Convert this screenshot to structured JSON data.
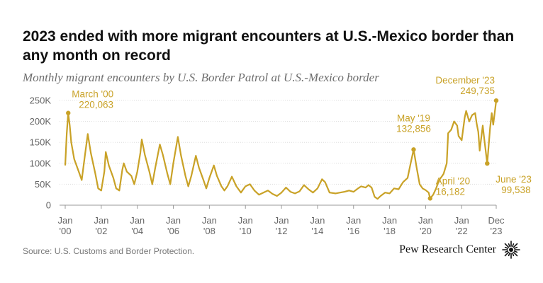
{
  "title": "2023 ended with more migrant encounters at U.S.-Mexico border than any month on record",
  "subtitle": "Monthly migrant encounters by U.S. Border Patrol at U.S.-Mexico border",
  "source": "Source: U.S. Customs and Border Protection.",
  "brand": "Pew Research Center",
  "colors": {
    "line": "#c9a227",
    "axis": "#999999",
    "grid": "#dddddd"
  },
  "chart_data": {
    "type": "line",
    "ylim": [
      0,
      250000
    ],
    "yticks": [
      {
        "value": 0,
        "label": "0"
      },
      {
        "value": 50000,
        "label": "50K"
      },
      {
        "value": 100000,
        "label": "100K"
      },
      {
        "value": 150000,
        "label": "150K"
      },
      {
        "value": 200000,
        "label": "200K"
      },
      {
        "value": 250000,
        "label": "250K"
      }
    ],
    "xlim": [
      2000.0,
      2023.917
    ],
    "xticks": [
      {
        "value": 2000.0,
        "line1": "Jan",
        "line2": "'00"
      },
      {
        "value": 2002.0,
        "line1": "Jan",
        "line2": "'02"
      },
      {
        "value": 2004.0,
        "line1": "Jan",
        "line2": "'04"
      },
      {
        "value": 2006.0,
        "line1": "Jan",
        "line2": "'06"
      },
      {
        "value": 2008.0,
        "line1": "Jan",
        "line2": "'08"
      },
      {
        "value": 2010.0,
        "line1": "Jan",
        "line2": "'10"
      },
      {
        "value": 2012.0,
        "line1": "Jan",
        "line2": "'12"
      },
      {
        "value": 2014.0,
        "line1": "Jan",
        "line2": "'14"
      },
      {
        "value": 2016.0,
        "line1": "Jan",
        "line2": "'16"
      },
      {
        "value": 2018.0,
        "line1": "Jan",
        "line2": "'18"
      },
      {
        "value": 2020.0,
        "line1": "Jan",
        "line2": "'20"
      },
      {
        "value": 2022.0,
        "line1": "Jan",
        "line2": "'22"
      },
      {
        "value": 2023.917,
        "line1": "Dec",
        "line2": "'23"
      }
    ],
    "series": [
      {
        "points": [
          [
            2000.0,
            95000
          ],
          [
            2000.083,
            170000
          ],
          [
            2000.167,
            220063
          ],
          [
            2000.25,
            190000
          ],
          [
            2000.333,
            150000
          ],
          [
            2000.5,
            110000
          ],
          [
            2000.75,
            80000
          ],
          [
            2000.917,
            60000
          ],
          [
            2001.083,
            115000
          ],
          [
            2001.25,
            170000
          ],
          [
            2001.42,
            125000
          ],
          [
            2001.67,
            75000
          ],
          [
            2001.83,
            40000
          ],
          [
            2002.0,
            35000
          ],
          [
            2002.17,
            80000
          ],
          [
            2002.25,
            127000
          ],
          [
            2002.42,
            95000
          ],
          [
            2002.67,
            65000
          ],
          [
            2002.83,
            40000
          ],
          [
            2003.0,
            35000
          ],
          [
            2003.17,
            85000
          ],
          [
            2003.25,
            100000
          ],
          [
            2003.42,
            80000
          ],
          [
            2003.67,
            70000
          ],
          [
            2003.83,
            50000
          ],
          [
            2004.0,
            80000
          ],
          [
            2004.17,
            125000
          ],
          [
            2004.25,
            157000
          ],
          [
            2004.42,
            120000
          ],
          [
            2004.67,
            80000
          ],
          [
            2004.83,
            50000
          ],
          [
            2005.0,
            90000
          ],
          [
            2005.25,
            145000
          ],
          [
            2005.42,
            120000
          ],
          [
            2005.67,
            75000
          ],
          [
            2005.83,
            50000
          ],
          [
            2006.0,
            100000
          ],
          [
            2006.25,
            163000
          ],
          [
            2006.42,
            120000
          ],
          [
            2006.67,
            70000
          ],
          [
            2006.83,
            45000
          ],
          [
            2007.0,
            70000
          ],
          [
            2007.25,
            118000
          ],
          [
            2007.42,
            90000
          ],
          [
            2007.67,
            60000
          ],
          [
            2007.83,
            40000
          ],
          [
            2008.0,
            65000
          ],
          [
            2008.25,
            95000
          ],
          [
            2008.42,
            70000
          ],
          [
            2008.67,
            45000
          ],
          [
            2008.83,
            35000
          ],
          [
            2009.0,
            45000
          ],
          [
            2009.25,
            68000
          ],
          [
            2009.5,
            45000
          ],
          [
            2009.75,
            30000
          ],
          [
            2010.0,
            45000
          ],
          [
            2010.25,
            50000
          ],
          [
            2010.5,
            35000
          ],
          [
            2010.75,
            25000
          ],
          [
            2011.0,
            30000
          ],
          [
            2011.25,
            35000
          ],
          [
            2011.5,
            27000
          ],
          [
            2011.75,
            22000
          ],
          [
            2012.0,
            30000
          ],
          [
            2012.25,
            42000
          ],
          [
            2012.5,
            32000
          ],
          [
            2012.75,
            28000
          ],
          [
            2013.0,
            33000
          ],
          [
            2013.25,
            48000
          ],
          [
            2013.5,
            38000
          ],
          [
            2013.75,
            30000
          ],
          [
            2014.0,
            40000
          ],
          [
            2014.25,
            62000
          ],
          [
            2014.42,
            55000
          ],
          [
            2014.67,
            30000
          ],
          [
            2015.0,
            28000
          ],
          [
            2015.25,
            30000
          ],
          [
            2015.5,
            32000
          ],
          [
            2015.75,
            35000
          ],
          [
            2016.0,
            32000
          ],
          [
            2016.25,
            40000
          ],
          [
            2016.42,
            45000
          ],
          [
            2016.67,
            42000
          ],
          [
            2016.83,
            48000
          ],
          [
            2017.0,
            42000
          ],
          [
            2017.17,
            20000
          ],
          [
            2017.33,
            15000
          ],
          [
            2017.5,
            22000
          ],
          [
            2017.75,
            30000
          ],
          [
            2018.0,
            28000
          ],
          [
            2018.25,
            40000
          ],
          [
            2018.5,
            38000
          ],
          [
            2018.75,
            55000
          ],
          [
            2019.0,
            65000
          ],
          [
            2019.17,
            100000
          ],
          [
            2019.333,
            132856
          ],
          [
            2019.5,
            90000
          ],
          [
            2019.67,
            50000
          ],
          [
            2019.83,
            40000
          ],
          [
            2020.0,
            36000
          ],
          [
            2020.167,
            30000
          ],
          [
            2020.25,
            16182
          ],
          [
            2020.42,
            25000
          ],
          [
            2020.58,
            40000
          ],
          [
            2020.75,
            60000
          ],
          [
            2020.92,
            70000
          ],
          [
            2021.0,
            75000
          ],
          [
            2021.17,
            100000
          ],
          [
            2021.25,
            172000
          ],
          [
            2021.42,
            180000
          ],
          [
            2021.58,
            200000
          ],
          [
            2021.75,
            190000
          ],
          [
            2021.83,
            165000
          ],
          [
            2022.0,
            155000
          ],
          [
            2022.17,
            210000
          ],
          [
            2022.25,
            225000
          ],
          [
            2022.42,
            200000
          ],
          [
            2022.58,
            215000
          ],
          [
            2022.75,
            220000
          ],
          [
            2022.83,
            195000
          ],
          [
            2022.92,
            175000
          ],
          [
            2023.0,
            130000
          ],
          [
            2023.17,
            190000
          ],
          [
            2023.25,
            160000
          ],
          [
            2023.417,
            99538
          ],
          [
            2023.58,
            185000
          ],
          [
            2023.67,
            220000
          ],
          [
            2023.75,
            192000
          ],
          [
            2023.917,
            249735
          ]
        ]
      }
    ],
    "annotations": [
      {
        "id": "mar00",
        "x": 2000.167,
        "y": 220063,
        "line1": "March '00",
        "line2": "220,063"
      },
      {
        "id": "may19",
        "x": 2019.333,
        "y": 132856,
        "line1": "May '19",
        "line2": "132,856"
      },
      {
        "id": "apr20",
        "x": 2020.25,
        "y": 16182,
        "line1": "April '20",
        "line2": "16,182"
      },
      {
        "id": "jun23",
        "x": 2023.417,
        "y": 99538,
        "line1": "June '23",
        "line2": "99,538"
      },
      {
        "id": "dec23",
        "x": 2023.917,
        "y": 249735,
        "line1": "December '23",
        "line2": "249,735"
      }
    ]
  }
}
